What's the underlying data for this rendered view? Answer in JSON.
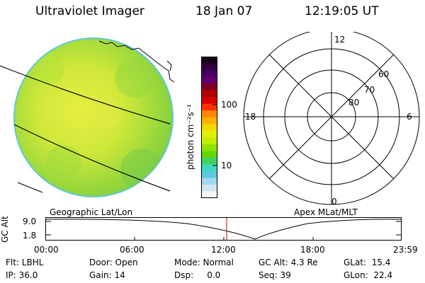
{
  "header": {
    "title": "Ultraviolet Imager",
    "date": "18 Jan 07",
    "time": "12:19:05 UT"
  },
  "colorbar": {
    "label": "photon cm⁻²s⁻¹",
    "ticks": [
      "100",
      "10"
    ],
    "colors": [
      "#140016",
      "#300040",
      "#480060",
      "#600070",
      "#800020",
      "#b00000",
      "#d80000",
      "#ff3000",
      "#ff8800",
      "#ffb000",
      "#f0d800",
      "#e0f000",
      "#c0ee00",
      "#90e400",
      "#60d800",
      "#40d060",
      "#40d8c0",
      "#60c8e0",
      "#a0d8f0",
      "#d0e8f0",
      "#f4f4f4"
    ]
  },
  "panels": {
    "left_label": "Geographic Lat/Lon",
    "right_label": "Apex MLat/MLT"
  },
  "polar": {
    "top": "12",
    "left": "18",
    "right": "6",
    "bottom": "0",
    "rings": [
      "60",
      "70",
      "80"
    ]
  },
  "timeline": {
    "axis_label": "GC Alt",
    "y_ticks": [
      "9.0",
      "1.8"
    ],
    "x_ticks": [
      "00:00",
      "06:00",
      "12:00",
      "18:00",
      "23:59"
    ],
    "marker_color": "#cc0000"
  },
  "info": {
    "flt": "Flt: LBHL",
    "ip": "IP: 36.0",
    "door": "Door: Open",
    "gain": "Gain: 14",
    "mode": "Mode: Normal",
    "dsp": "Dsp:     0.0",
    "gcalt": "GC Alt: 4.3 Re",
    "seq": "Seq: 39",
    "glat": "GLat:  15.4",
    "glon": "GLon:  22.4"
  }
}
